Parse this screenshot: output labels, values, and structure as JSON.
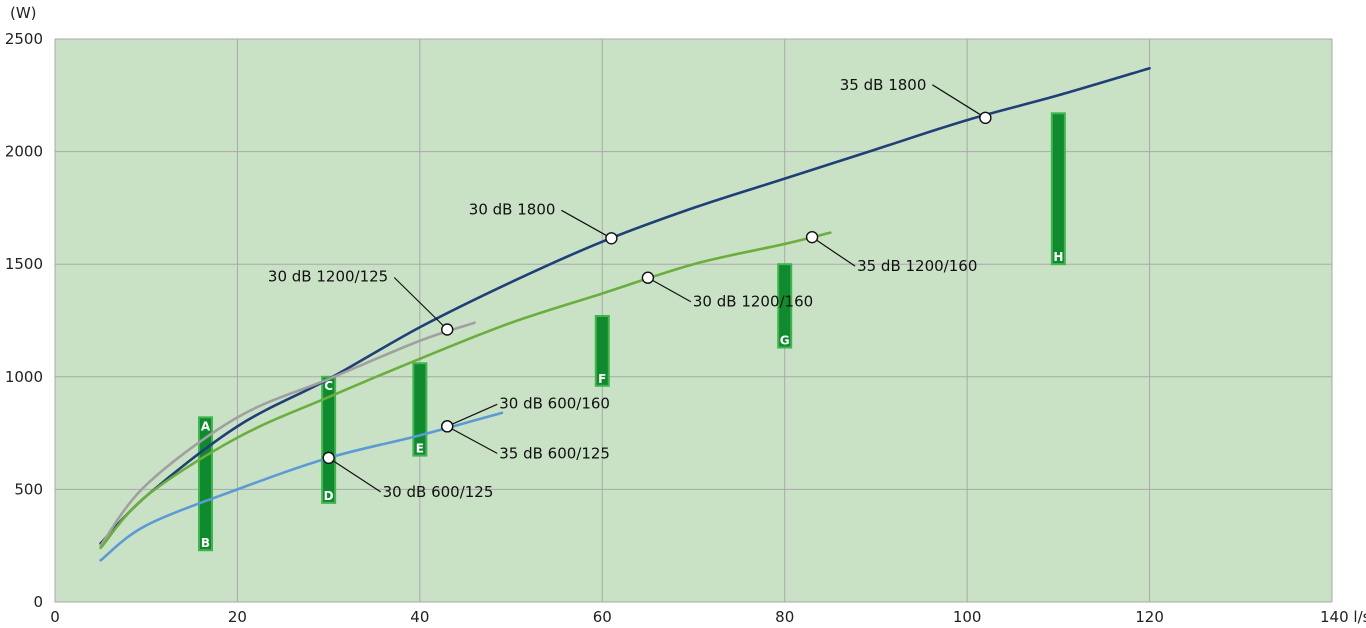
{
  "chart_data": {
    "type": "line",
    "title": "",
    "xlabel": "",
    "ylabel": "",
    "x_unit": "l/s",
    "y_unit": "(W)",
    "xlim": [
      0,
      140
    ],
    "ylim": [
      0,
      2500
    ],
    "x_ticks": [
      0,
      20,
      40,
      60,
      80,
      100,
      120,
      140
    ],
    "x_tick_labels": [
      "0",
      "20",
      "40",
      "60",
      "80",
      "100",
      "120",
      "140 l/s"
    ],
    "y_ticks": [
      0,
      500,
      1000,
      1500,
      2000,
      2500
    ],
    "grid": true,
    "colors": {
      "plot_background": "#c9e2c5",
      "grid": "#a9a9a9",
      "bar_fill": "#0f8a2e",
      "bar_edge": "#3fb54d"
    },
    "series": [
      {
        "color": "#1f3f78",
        "x": [
          5,
          10,
          20,
          30,
          40,
          50,
          60,
          70,
          80,
          90,
          100,
          110,
          120
        ],
        "y": [
          260,
          470,
          780,
          990,
          1220,
          1420,
          1600,
          1750,
          1880,
          2010,
          2140,
          2250,
          2370
        ]
      },
      {
        "color": "#a0a0a0",
        "x": [
          5,
          10,
          20,
          30,
          40,
          46
        ],
        "y": [
          250,
          520,
          820,
          990,
          1160,
          1240
        ]
      },
      {
        "color": "#6cae3e",
        "x": [
          5,
          10,
          20,
          30,
          40,
          50,
          60,
          70,
          80,
          85
        ],
        "y": [
          240,
          470,
          730,
          910,
          1080,
          1240,
          1370,
          1500,
          1590,
          1640
        ]
      },
      {
        "color": "#5b9bd5",
        "x": [
          5,
          10,
          20,
          30,
          40,
          49
        ],
        "y": [
          185,
          340,
          500,
          640,
          740,
          840
        ]
      }
    ],
    "markers": [
      {
        "x": 102,
        "y": 2150,
        "label": "35 dB 1800"
      },
      {
        "x": 61,
        "y": 1615,
        "label": "30 dB 1800"
      },
      {
        "x": 43,
        "y": 1210,
        "label": "30 dB 1200/125"
      },
      {
        "x": 83,
        "y": 1620,
        "label": "35 dB 1200/160"
      },
      {
        "x": 65,
        "y": 1440,
        "label": "30 dB 1200/160"
      },
      {
        "x": 43,
        "y": 780,
        "label": "30 dB 600/160"
      },
      {
        "x": 43,
        "y": 780,
        "label": "35 dB 600/125"
      },
      {
        "x": 30,
        "y": 640,
        "label": "30 dB 600/125"
      }
    ],
    "bars": [
      {
        "x": 16.5,
        "y_low": 230,
        "y_high": 820,
        "labels": [
          "A",
          "B"
        ]
      },
      {
        "x": 30,
        "y_low": 440,
        "y_high": 1000,
        "labels": [
          "C",
          "D"
        ]
      },
      {
        "x": 40,
        "y_low": 650,
        "y_high": 1060,
        "labels": [
          "E"
        ]
      },
      {
        "x": 60,
        "y_low": 960,
        "y_high": 1270,
        "labels": [
          "F"
        ]
      },
      {
        "x": 80,
        "y_low": 1130,
        "y_high": 1500,
        "labels": [
          "G"
        ]
      },
      {
        "x": 110,
        "y_low": 1500,
        "y_high": 2170,
        "labels": [
          "H"
        ]
      }
    ]
  }
}
